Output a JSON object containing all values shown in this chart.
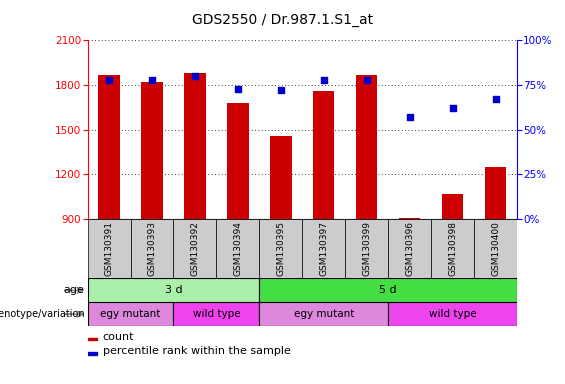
{
  "title": "GDS2550 / Dr.987.1.S1_at",
  "samples": [
    "GSM130391",
    "GSM130393",
    "GSM130392",
    "GSM130394",
    "GSM130395",
    "GSM130397",
    "GSM130399",
    "GSM130396",
    "GSM130398",
    "GSM130400"
  ],
  "counts": [
    1870,
    1820,
    1880,
    1680,
    1460,
    1760,
    1870,
    905,
    1070,
    1250
  ],
  "percentiles": [
    78,
    78,
    80,
    73,
    72,
    78,
    78,
    57,
    62,
    67
  ],
  "ylim_left": [
    900,
    2100
  ],
  "ylim_right": [
    0,
    100
  ],
  "yticks_left": [
    900,
    1200,
    1500,
    1800,
    2100
  ],
  "yticks_right": [
    0,
    25,
    50,
    75,
    100
  ],
  "bar_color": "#cc0000",
  "scatter_color": "#0000cc",
  "age_groups": [
    {
      "text": "3 d",
      "start": 0,
      "end": 4,
      "color": "#aaf0aa"
    },
    {
      "text": "5 d",
      "start": 4,
      "end": 10,
      "color": "#44dd44"
    }
  ],
  "genotype_groups": [
    {
      "text": "egy mutant",
      "start": 0,
      "end": 2,
      "color": "#dd88dd"
    },
    {
      "text": "wild type",
      "start": 2,
      "end": 4,
      "color": "#ee44ee"
    },
    {
      "text": "egy mutant",
      "start": 4,
      "end": 7,
      "color": "#dd88dd"
    },
    {
      "text": "wild type",
      "start": 7,
      "end": 10,
      "color": "#ee44ee"
    }
  ],
  "sample_bg": "#cccccc",
  "grid_color": "#000000",
  "background_color": "#ffffff",
  "title_fontsize": 10,
  "tick_fontsize": 7.5,
  "label_fontsize": 8,
  "bar_width": 0.5
}
